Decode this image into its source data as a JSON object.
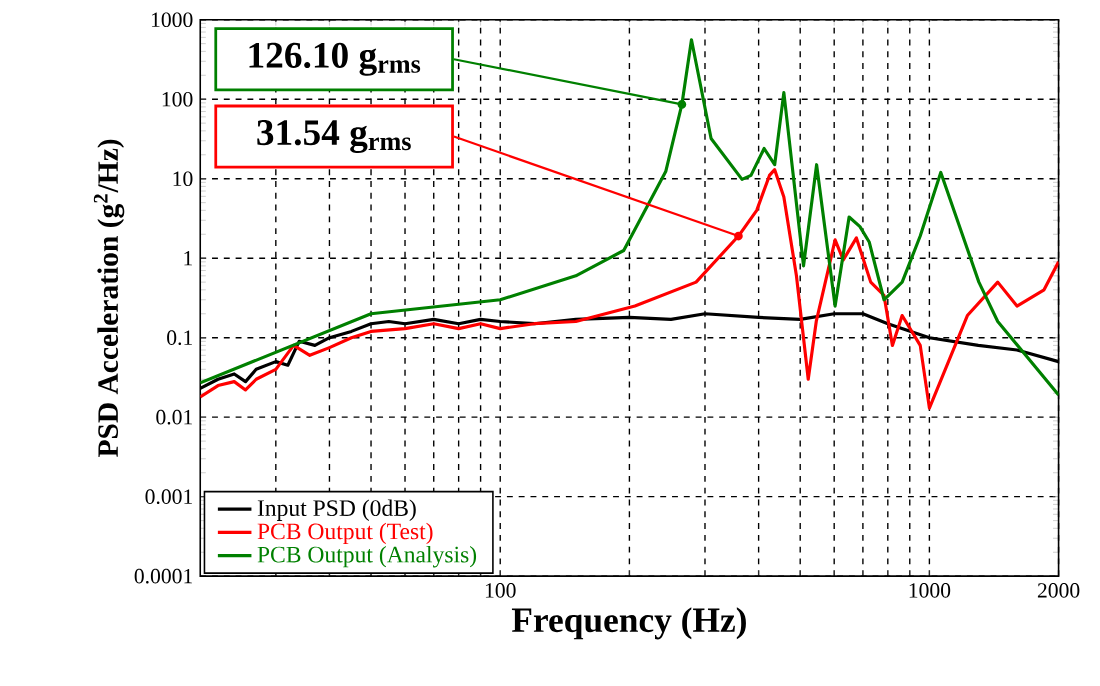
{
  "chart_data": {
    "type": "line",
    "xlabel": "Frequency (Hz)",
    "ylabel": "PSD Acceleration (g$^{2}$/Hz)",
    "log": "xy",
    "grid": true,
    "legend": "bottom left",
    "line_style": "solid",
    "marker": "none",
    "xlim": [
      20,
      2000
    ],
    "ylim": [
      0.0001,
      1000
    ],
    "xticks": [
      {
        "value": 30,
        "label": null
      },
      {
        "value": 40,
        "label": null
      },
      {
        "value": 50,
        "label": null
      },
      {
        "value": 60,
        "label": null
      },
      {
        "value": 70,
        "label": null
      },
      {
        "value": 80,
        "label": null
      },
      {
        "value": 90,
        "label": null
      },
      100,
      {
        "value": 200,
        "label": null
      },
      {
        "value": 300,
        "label": null
      },
      {
        "value": 400,
        "label": null
      },
      {
        "value": 500,
        "label": null
      },
      {
        "value": 600,
        "label": null
      },
      {
        "value": 700,
        "label": null
      },
      {
        "value": 800,
        "label": null
      },
      {
        "value": 900,
        "label": null
      },
      1000,
      2000
    ],
    "yticks": [
      0.0001,
      0.001,
      0.01,
      0.1,
      1,
      10,
      100,
      1000
    ],
    "series": [
      {
        "name": "Input PSD (0dB)",
        "color": "#000000",
        "x": [
          20,
          22,
          24,
          25.5,
          27,
          30,
          32,
          34,
          37,
          40,
          45,
          50,
          55,
          60,
          70,
          80,
          90,
          100,
          120,
          150,
          200,
          250,
          300,
          400,
          500,
          600,
          700,
          800,
          1000,
          1300,
          1600,
          2000
        ],
        "values": [
          0.023,
          0.03,
          0.035,
          0.028,
          0.04,
          0.05,
          0.045,
          0.09,
          0.08,
          0.1,
          0.12,
          0.15,
          0.16,
          0.15,
          0.17,
          0.15,
          0.17,
          0.16,
          0.15,
          0.17,
          0.18,
          0.17,
          0.2,
          0.18,
          0.17,
          0.2,
          0.2,
          0.15,
          0.1,
          0.08,
          0.07,
          0.05
        ]
      },
      {
        "name": "PCB Output (Test)",
        "color": "#ff0000",
        "x": [
          20,
          22,
          24,
          25.5,
          27,
          30,
          33,
          36,
          40,
          45,
          50,
          60,
          70,
          80,
          90,
          100,
          120,
          150,
          206,
          286,
          359,
          396,
          424,
          436,
          458,
          490,
          522,
          545,
          603,
          630,
          676,
          730,
          784,
          820,
          864,
          952,
          1000,
          1226,
          1443,
          1600,
          1850,
          2000
        ],
        "values": [
          0.018,
          0.025,
          0.028,
          0.022,
          0.03,
          0.04,
          0.08,
          0.06,
          0.075,
          0.1,
          0.12,
          0.13,
          0.15,
          0.13,
          0.15,
          0.13,
          0.15,
          0.16,
          0.25,
          0.5,
          1.9,
          4,
          11,
          13,
          5.9,
          0.6,
          0.03,
          0.16,
          1.7,
          0.95,
          1.8,
          0.5,
          0.34,
          0.08,
          0.19,
          0.08,
          0.013,
          0.19,
          0.5,
          0.25,
          0.4,
          0.9
        ]
      },
      {
        "name": "PCB Output (Analysis)",
        "color": "#008000",
        "x": [
          20,
          50,
          100,
          150,
          194,
          243,
          265,
          279,
          310,
          366,
          384,
          412,
          436,
          458,
          509,
          546,
          603,
          650,
          689,
          724,
          784,
          864,
          952,
          1063,
          1304,
          1443,
          2000
        ],
        "values": [
          0.027,
          0.2,
          0.3,
          0.6,
          1.25,
          12.3,
          86,
          560,
          32,
          9.8,
          11,
          24,
          15,
          121,
          0.8,
          15,
          0.25,
          3.3,
          2.5,
          1.6,
          0.3,
          0.5,
          1.9,
          12,
          0.5,
          0.16,
          0.019
        ]
      }
    ],
    "annotations": [
      {
        "text": "126.10 g$_{rms}$",
        "x": 265,
        "y": 86
      },
      {
        "text": "31.54 g$_{rms}$",
        "x": 359,
        "y": 1.9
      }
    ]
  }
}
